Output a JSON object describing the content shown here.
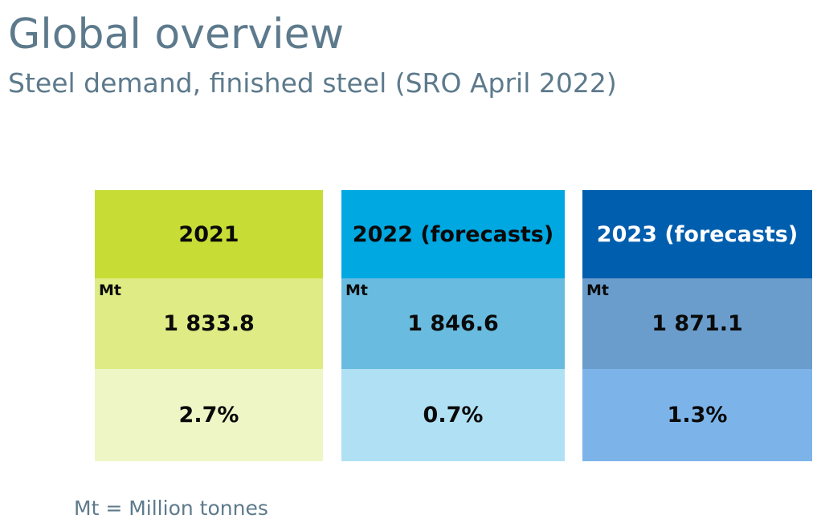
{
  "header": {
    "title": "Global overview",
    "subtitle": "Steel demand, finished steel (SRO April 2022)"
  },
  "cards": [
    {
      "year": "2021",
      "unit": "Mt",
      "value": "1 833.8",
      "growth": "2.7%",
      "colors": {
        "head": "#c8dc36",
        "mid": "#dfeb84",
        "low": "#eff6c6",
        "head_text": "#0a0a0a"
      }
    },
    {
      "year": "2022 (forecasts)",
      "unit": "Mt",
      "value": "1 846.6",
      "growth": "0.7%",
      "colors": {
        "head": "#00a8e2",
        "mid": "#69bcdf",
        "low": "#b0e0f3",
        "head_text": "#0a0a0a"
      }
    },
    {
      "year": "2023 (forecasts)",
      "unit": "Mt",
      "value": "1 871.1",
      "growth": "1.3%",
      "colors": {
        "head": "#005eae",
        "mid": "#6a9dcb",
        "low": "#7cb4ea",
        "head_text": "#ffffff"
      }
    }
  ],
  "footnote": "Mt = Million tonnes"
}
